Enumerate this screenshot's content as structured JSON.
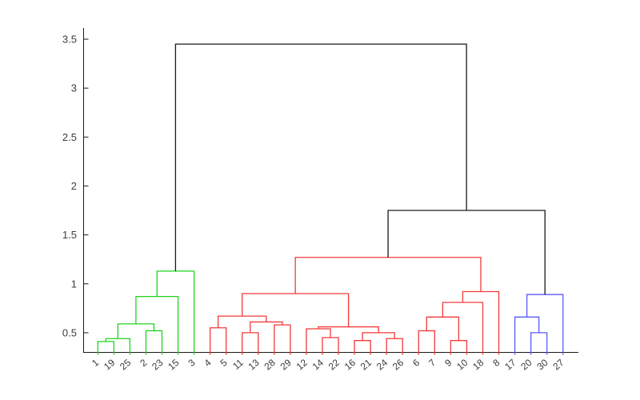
{
  "figure": {
    "title": "",
    "background": "#ffffff"
  },
  "axes": {
    "axis_color": "#1a1a1a",
    "tick_label_color": "#3d3d3d"
  },
  "chart_data": {
    "type": "dendrogram",
    "title": "",
    "xlabel": "",
    "ylabel": "",
    "grid": false,
    "legend": null,
    "ylim": [
      0.3,
      3.68
    ],
    "y_ticks": [
      {
        "v": 0.5,
        "label": "0.5"
      },
      {
        "v": 1.0,
        "label": "1"
      },
      {
        "v": 1.5,
        "label": "1.5"
      },
      {
        "v": 2.0,
        "label": "2"
      },
      {
        "v": 2.5,
        "label": "2.5"
      },
      {
        "v": 3.0,
        "label": "3"
      },
      {
        "v": 3.5,
        "label": "3.5"
      }
    ],
    "leaf_order": [
      "1",
      "19",
      "25",
      "2",
      "23",
      "15",
      "3",
      "4",
      "5",
      "11",
      "13",
      "28",
      "29",
      "12",
      "14",
      "22",
      "16",
      "21",
      "24",
      "26",
      "6",
      "7",
      "9",
      "10",
      "18",
      "8",
      "17",
      "20",
      "30",
      "27"
    ],
    "cluster_colors": {
      "green": "#1fd51f",
      "red": "#f23a3a",
      "blue": "#5a5af5",
      "black": "#1a1a1a"
    },
    "clusters": [
      {
        "color": "green",
        "leaves": [
          "1",
          "19",
          "25",
          "2",
          "23",
          "15",
          "3"
        ]
      },
      {
        "color": "red",
        "leaves": [
          "4",
          "5",
          "11",
          "13",
          "28",
          "29",
          "12",
          "14",
          "22",
          "16",
          "21",
          "24",
          "26",
          "6",
          "7",
          "9",
          "10",
          "18",
          "8"
        ]
      },
      {
        "color": "blue",
        "leaves": [
          "17",
          "20",
          "30",
          "27"
        ]
      }
    ],
    "merges": [
      {
        "id": "g1",
        "a": "L:1",
        "b": "L:19",
        "height": 0.41,
        "color": "green"
      },
      {
        "id": "g2",
        "a": "M:g1",
        "b": "L:25",
        "height": 0.44,
        "color": "green"
      },
      {
        "id": "g3",
        "a": "L:2",
        "b": "L:23",
        "height": 0.52,
        "color": "green"
      },
      {
        "id": "g4",
        "a": "M:g2",
        "b": "M:g3",
        "height": 0.59,
        "color": "green"
      },
      {
        "id": "g5",
        "a": "M:g4",
        "b": "L:15",
        "height": 0.87,
        "color": "green"
      },
      {
        "id": "g6",
        "a": "M:g5",
        "b": "L:3",
        "height": 1.13,
        "color": "green"
      },
      {
        "id": "r1",
        "a": "L:4",
        "b": "L:5",
        "height": 0.55,
        "color": "red"
      },
      {
        "id": "r2",
        "a": "L:11",
        "b": "L:13",
        "height": 0.5,
        "color": "red"
      },
      {
        "id": "r3",
        "a": "L:28",
        "b": "L:29",
        "height": 0.58,
        "color": "red"
      },
      {
        "id": "r4",
        "a": "M:r2",
        "b": "M:r3",
        "height": 0.61,
        "color": "red"
      },
      {
        "id": "r5",
        "a": "M:r1",
        "b": "M:r4",
        "height": 0.67,
        "color": "red"
      },
      {
        "id": "r6",
        "a": "L:14",
        "b": "L:22",
        "height": 0.45,
        "color": "red"
      },
      {
        "id": "r7",
        "a": "L:12",
        "b": "M:r6",
        "height": 0.54,
        "color": "red"
      },
      {
        "id": "r8",
        "a": "L:16",
        "b": "L:21",
        "height": 0.42,
        "color": "red"
      },
      {
        "id": "r9",
        "a": "L:24",
        "b": "L:26",
        "height": 0.44,
        "color": "red"
      },
      {
        "id": "r10",
        "a": "M:r8",
        "b": "M:r9",
        "height": 0.5,
        "color": "red"
      },
      {
        "id": "r11",
        "a": "M:r7",
        "b": "M:r10",
        "height": 0.56,
        "color": "red"
      },
      {
        "id": "r12",
        "a": "M:r5",
        "b": "M:r11",
        "height": 0.9,
        "color": "red"
      },
      {
        "id": "r13",
        "a": "L:6",
        "b": "L:7",
        "height": 0.52,
        "color": "red"
      },
      {
        "id": "r14",
        "a": "L:9",
        "b": "L:10",
        "height": 0.42,
        "color": "red"
      },
      {
        "id": "r15",
        "a": "M:r13",
        "b": "M:r14",
        "height": 0.66,
        "color": "red"
      },
      {
        "id": "r16",
        "a": "M:r15",
        "b": "L:18",
        "height": 0.81,
        "color": "red"
      },
      {
        "id": "r17",
        "a": "M:r16",
        "b": "L:8",
        "height": 0.92,
        "color": "red"
      },
      {
        "id": "r18",
        "a": "M:r12",
        "b": "M:r17",
        "height": 1.27,
        "color": "red"
      },
      {
        "id": "b1",
        "a": "L:20",
        "b": "L:30",
        "height": 0.5,
        "color": "blue"
      },
      {
        "id": "b2",
        "a": "L:17",
        "b": "M:b1",
        "height": 0.66,
        "color": "blue"
      },
      {
        "id": "b3",
        "a": "M:b2",
        "b": "L:27",
        "height": 0.89,
        "color": "blue"
      },
      {
        "id": "k1",
        "a": "M:r18",
        "b": "M:b3",
        "height": 1.75,
        "color": "black"
      },
      {
        "id": "k2",
        "a": "M:g6",
        "b": "M:k1",
        "height": 3.45,
        "color": "black"
      }
    ]
  }
}
